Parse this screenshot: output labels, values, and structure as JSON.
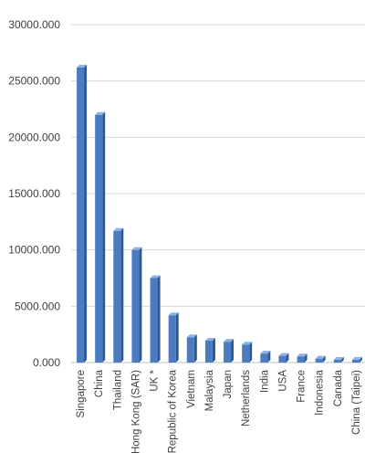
{
  "chart_data": {
    "type": "bar",
    "style": "3d-column",
    "title": "",
    "xlabel": "",
    "ylabel": "",
    "ylim": [
      0,
      30000
    ],
    "y_ticks": [
      0,
      5000,
      10000,
      15000,
      20000,
      25000,
      30000
    ],
    "y_tick_labels": [
      "0.000",
      "5000.000",
      "10000.000",
      "15000.000",
      "20000.000",
      "25000.000",
      "30000.000"
    ],
    "grid": true,
    "legend": "none",
    "categories": [
      "Singapore",
      "China",
      "Thailand",
      "Hong Kong (SAR)",
      "UK *",
      "Republic of Korea",
      "Vietnam",
      "Malaysia",
      "Japan",
      "Netherlands",
      "India",
      "USA",
      "France",
      "Indonesia",
      "Canada",
      "China (Taipei)"
    ],
    "values": [
      26200,
      22000,
      11700,
      10000,
      7500,
      4200,
      2250,
      1950,
      1850,
      1600,
      800,
      600,
      550,
      350,
      250,
      250
    ],
    "colors": {
      "bar_front": "#4a7cc1",
      "bar_side": "#2e5890",
      "bar_top": "#8fb1e0",
      "grid": "#d9d9d9",
      "axis": "#bfbfbf",
      "text": "#404040"
    }
  }
}
